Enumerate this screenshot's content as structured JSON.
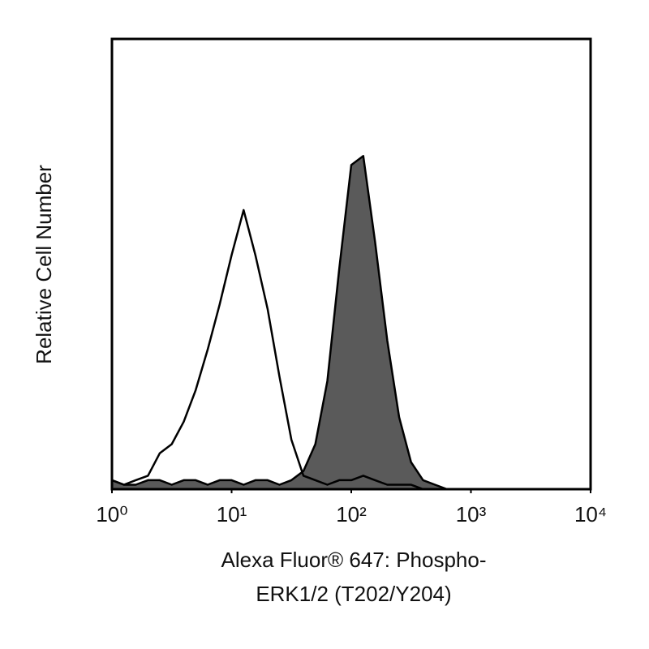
{
  "chart_data": {
    "type": "histogram-overlay",
    "ylabel": "Relative Cell Number",
    "xlabel": [
      "Alexa Fluor® 647: Phospho-",
      "ERK1/2 (T202/Y204)"
    ],
    "xscale": "log",
    "xlim": [
      1,
      10000
    ],
    "xticks": [
      {
        "value": 1,
        "label": "10⁰"
      },
      {
        "value": 10,
        "label": "10¹"
      },
      {
        "value": 100,
        "label": "10²"
      },
      {
        "value": 1000,
        "label": "10³"
      },
      {
        "value": 10000,
        "label": "10⁴"
      }
    ],
    "ylim": [
      0,
      100
    ],
    "x": [
      1,
      1.26,
      1.58,
      2,
      2.51,
      3.16,
      3.98,
      5.01,
      6.31,
      7.94,
      10,
      12.6,
      15.8,
      20,
      25.1,
      31.6,
      39.8,
      50.1,
      63.1,
      79.4,
      100,
      126,
      158,
      200,
      251,
      316,
      398,
      501,
      631
    ],
    "series": [
      {
        "color": "#5a5a5a",
        "filled": true,
        "values": [
          2,
          1,
          1,
          2,
          2,
          1,
          2,
          2,
          1,
          2,
          2,
          1,
          2,
          2,
          1,
          2,
          4,
          10,
          24,
          49,
          72,
          74,
          55,
          33,
          16,
          6,
          2,
          1,
          0
        ]
      },
      {
        "color": "#000000",
        "filled": false,
        "values": [
          2,
          1,
          2,
          3,
          8,
          10,
          15,
          22,
          31,
          41,
          52,
          62,
          52,
          40,
          25,
          11,
          3,
          2,
          1,
          2,
          2,
          3,
          2,
          1,
          1,
          1,
          0,
          0,
          0
        ]
      }
    ]
  }
}
